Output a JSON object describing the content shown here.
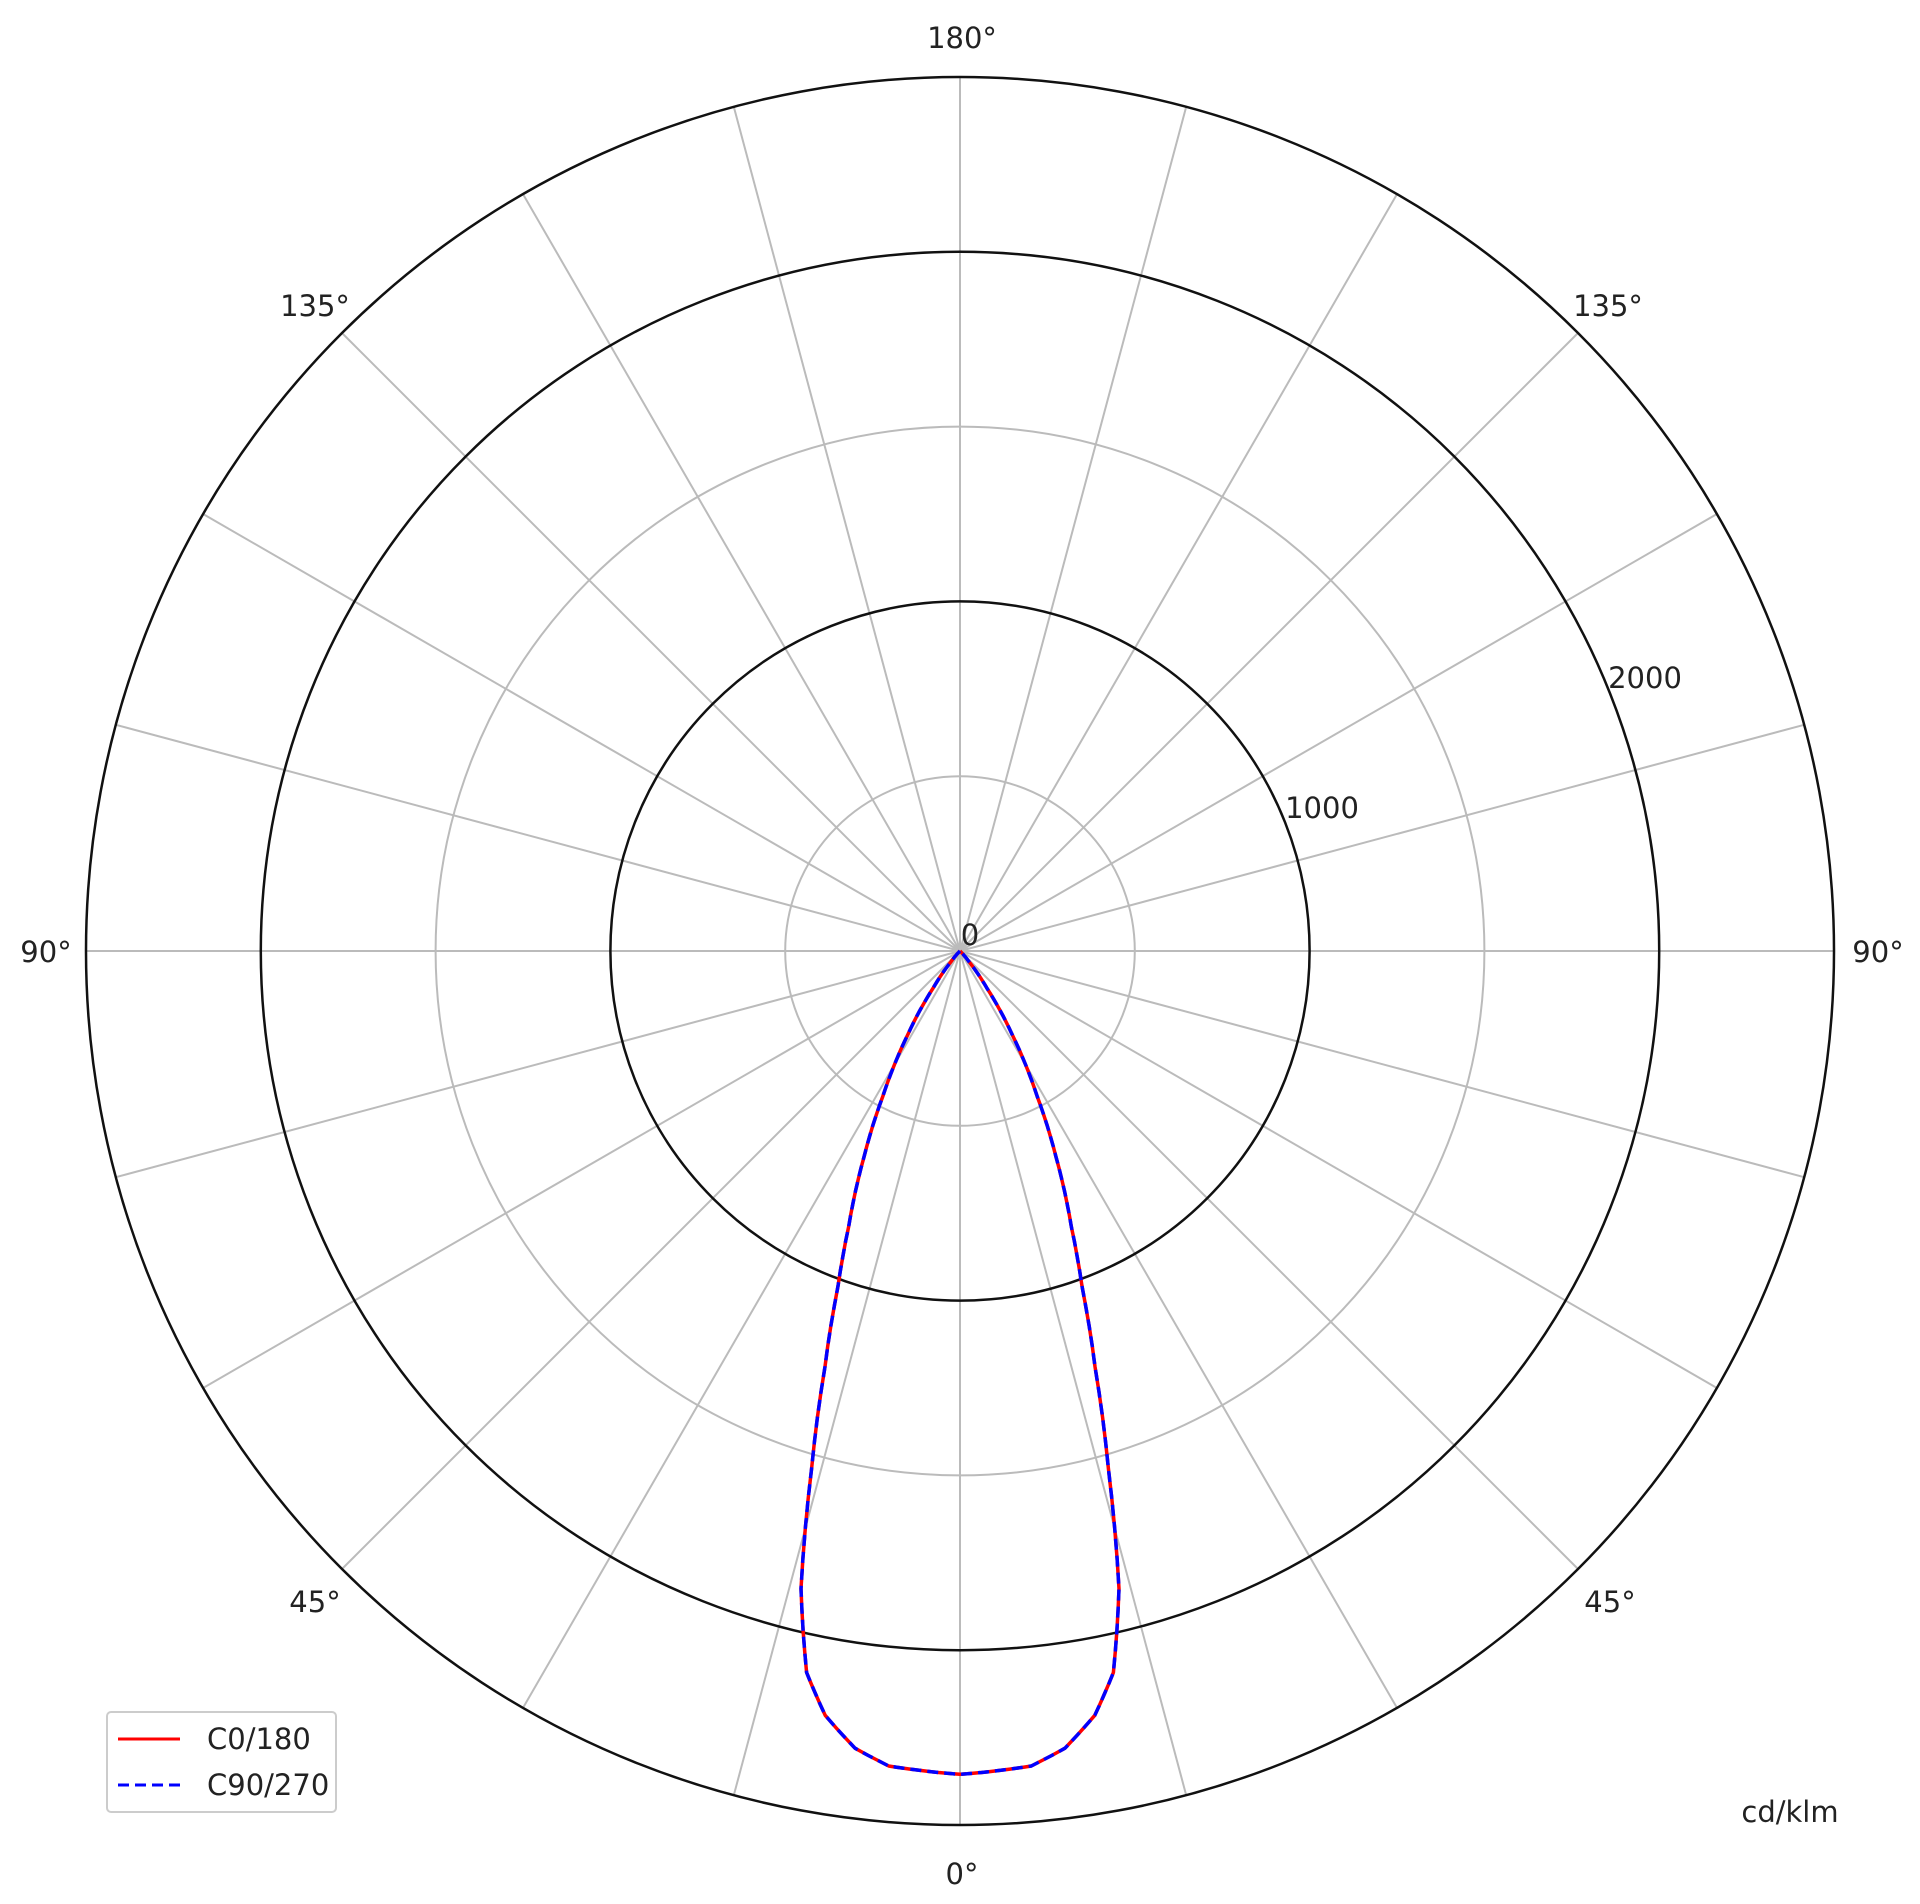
{
  "chart_data": {
    "type": "polar",
    "unit_label": "cd/klm",
    "radial_ticks": [
      0,
      1000,
      2000
    ],
    "radial_rings": [
      500,
      1000,
      1500,
      2000,
      2500
    ],
    "radial_max": 2500,
    "angle_labels": {
      "top": "180°",
      "upper_left": "135°",
      "upper_right": "135°",
      "left": "90°",
      "right": "90°",
      "lower_left": "45°",
      "lower_right": "45°",
      "bottom": "0°"
    },
    "radial_tick_labels": [
      "0",
      "1000",
      "2000"
    ],
    "grid": true,
    "spoke_step_deg": 15,
    "legend_position": "bottom-left",
    "colors": {
      "C0/180": "#ff0000",
      "C90/270": "#0000ff"
    },
    "gamma_deg": [
      0,
      5,
      7.5,
      10,
      12,
      14,
      16,
      18,
      20,
      22,
      25,
      28,
      32,
      36,
      40,
      45,
      90
    ],
    "series": [
      {
        "name": "C0/180",
        "style": "solid",
        "values": [
          2355,
          2340,
          2300,
          2220,
          2110,
          1880,
          1540,
          1250,
          1020,
          850,
          650,
          470,
          280,
          130,
          40,
          0,
          0
        ]
      },
      {
        "name": "C90/270",
        "style": "dashed",
        "values": [
          2355,
          2340,
          2300,
          2220,
          2110,
          1880,
          1540,
          1250,
          1020,
          850,
          650,
          470,
          280,
          130,
          40,
          0,
          0
        ]
      }
    ]
  }
}
